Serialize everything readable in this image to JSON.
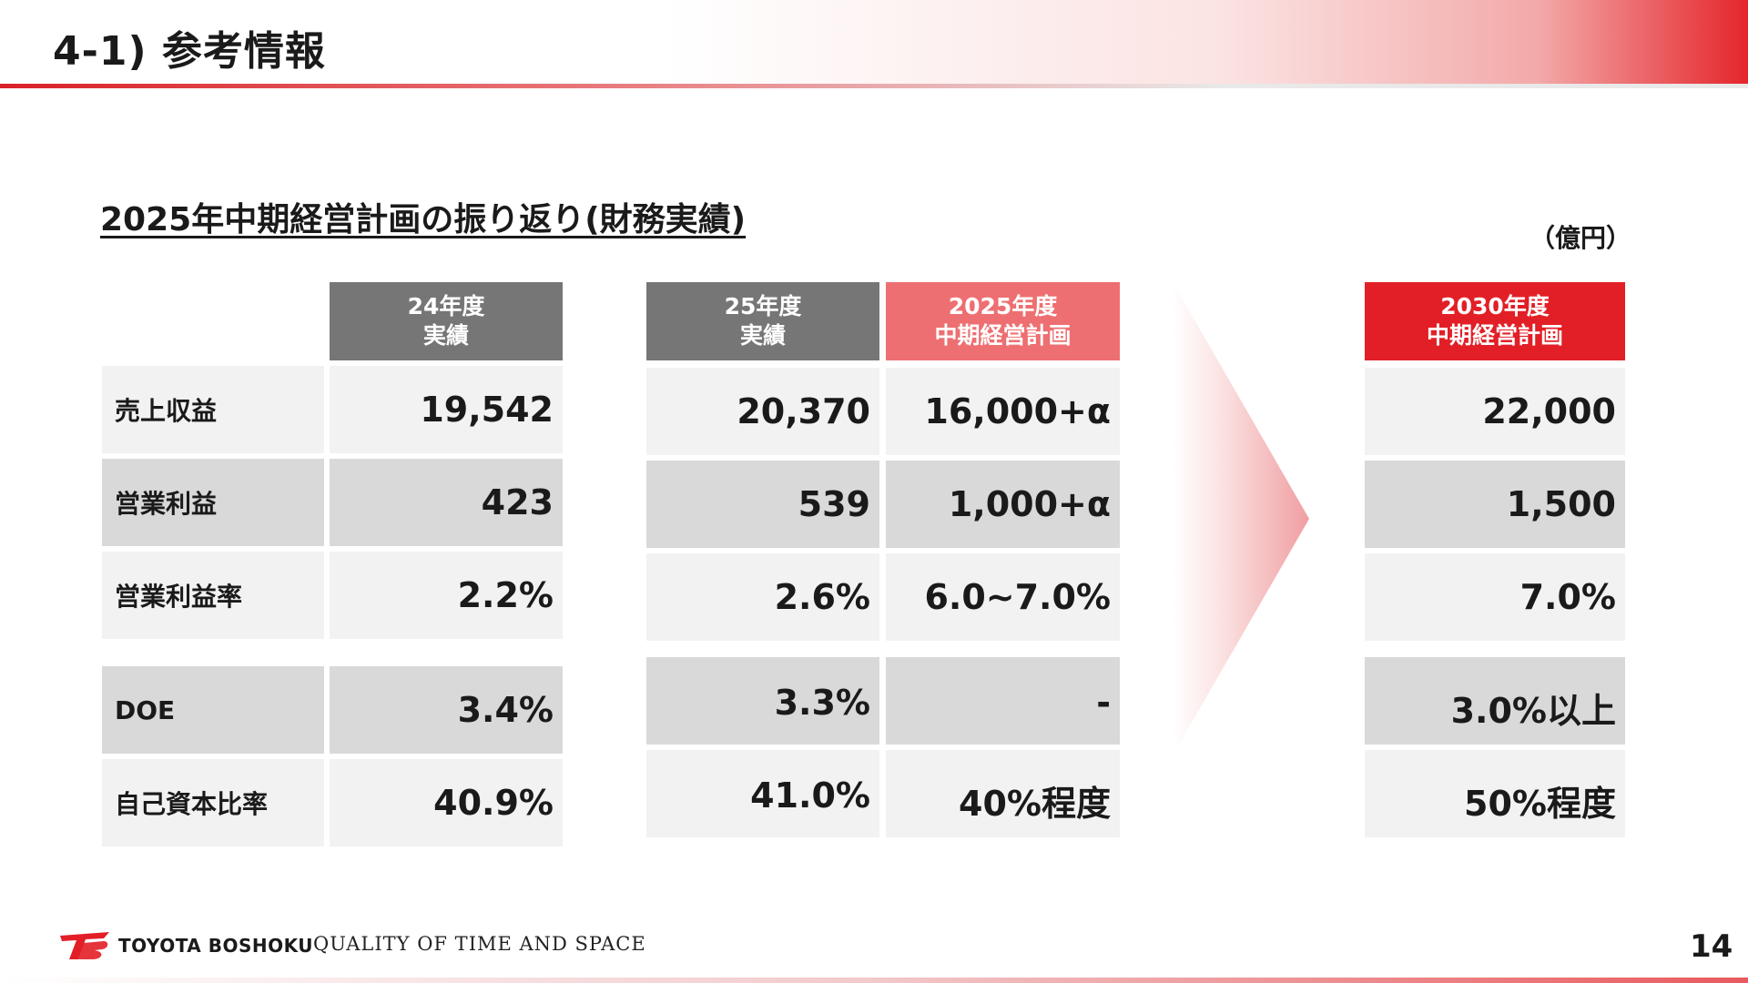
{
  "slide": {
    "title": "4-1) 参考情報",
    "section_title": "2025年中期経営計画の振り返り(財務実績)",
    "unit": "（億円）",
    "page_number": "14"
  },
  "columns": [
    {
      "line1": "24年度",
      "line2": "実績",
      "color": "#767676"
    },
    {
      "line1": "25年度",
      "line2": "実績",
      "color": "#767676"
    },
    {
      "line1": "2025年度",
      "line2": "中期経営計画",
      "color": "#ee6f71"
    },
    {
      "line1": "2030年度",
      "line2": "中期経営計画",
      "color": "#e21f26"
    }
  ],
  "rows": [
    {
      "label": "売上収益",
      "fy24": "19,542",
      "fy25": "20,370",
      "plan2025": "16,000+α",
      "plan2030": "22,000"
    },
    {
      "label": "営業利益",
      "fy24": "423",
      "fy25": "539",
      "plan2025": "1,000+α",
      "plan2030": "1,500"
    },
    {
      "label": "営業利益率",
      "fy24": "2.2%",
      "fy25": "2.6%",
      "plan2025": "6.0~7.0%",
      "plan2030": "7.0%"
    },
    {
      "label": "DOE",
      "fy24": "3.4%",
      "fy25": "3.3%",
      "plan2025": "-",
      "plan2030": "3.0%以上"
    },
    {
      "label": "自己資本比率",
      "fy24": "40.9%",
      "fy25": "41.0%",
      "plan2025": "40%程度",
      "plan2030": "50%程度"
    }
  ],
  "footer": {
    "company": "TOYOTA BOSHOKU",
    "tagline": "QUALITY OF TIME AND SPACE"
  },
  "colors": {
    "accent_red": "#e21f26",
    "header_gray": "#767676",
    "plan_pink": "#ee6f71"
  }
}
